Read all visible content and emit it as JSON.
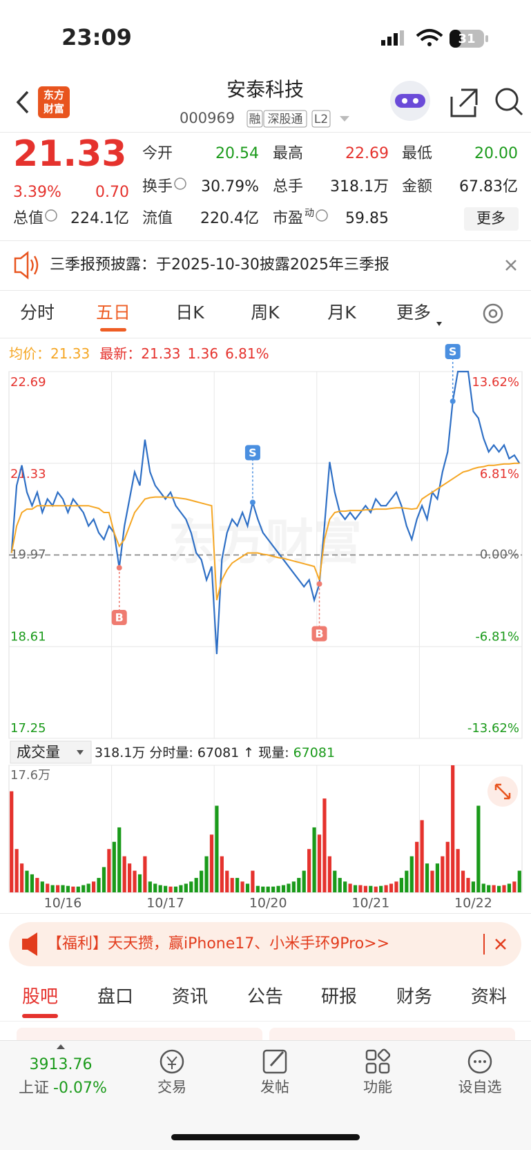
{
  "status_bar": {
    "time": "23:09",
    "battery": "31"
  },
  "header": {
    "logo": [
      "东方",
      "财富"
    ],
    "title": "安泰科技",
    "code": "000969",
    "tags": [
      "融",
      "深股通",
      "L2"
    ]
  },
  "quote": {
    "price": "21.33",
    "change_pct": "3.39%",
    "change": "0.70",
    "color": "#e5322d",
    "fields": [
      {
        "label": "今开",
        "value": "20.54",
        "color": "#1a9a1a"
      },
      {
        "label": "最高",
        "value": "22.69",
        "color": "#e5322d"
      },
      {
        "label": "最低",
        "value": "20.00",
        "color": "#1a9a1a"
      },
      {
        "label": "换手",
        "value": "30.79%",
        "info": true
      },
      {
        "label": "总手",
        "value": "318.1万"
      },
      {
        "label": "金额",
        "value": "67.83亿"
      },
      {
        "label": "总值",
        "value": "224.1亿",
        "info": true
      },
      {
        "label": "流值",
        "value": "220.4亿"
      },
      {
        "label": "市盈",
        "sup": "动",
        "value": "59.85",
        "info": true
      }
    ],
    "more": "更多"
  },
  "notice": {
    "text": "三季报预披露：于2025-10-30披露2025年三季报"
  },
  "tabs": {
    "items": [
      "分时",
      "五日",
      "日K",
      "周K",
      "月K",
      "更多"
    ],
    "active": 1
  },
  "chart_info": {
    "avg_label": "均价：",
    "avg": "21.33",
    "latest_label": "最新：",
    "latest": "21.33",
    "change": "1.36",
    "change_pct": "6.81%"
  },
  "watermark": "东方财富",
  "volume_info": {
    "selector": "成交量",
    "total": "318.1万",
    "period_label": "分时量:",
    "period": "67081",
    "arrow": "↑",
    "current_label": "现量:",
    "current": "67081"
  },
  "banner": {
    "text": "【福利】天天攒，赢iPhone17、小米手环9Pro>>"
  },
  "bottom_tabs": {
    "items": [
      "股吧",
      "盘口",
      "资讯",
      "公告",
      "研报",
      "财务",
      "资料"
    ],
    "active": 0
  },
  "bottom_bar": {
    "index_value": "3913.76",
    "index_name": "上证",
    "index_change": "-0.07%",
    "items": [
      "交易",
      "发帖",
      "功能",
      "设自选"
    ]
  },
  "chart_data": [
    {
      "type": "line",
      "ylim": [
        17.25,
        22.69
      ],
      "yticks": [
        17.25,
        18.61,
        19.97,
        21.33,
        22.69
      ],
      "reference": 19.97,
      "y2lim": [
        -13.62,
        13.62
      ],
      "y2ticks": [
        {
          "value": -13.62,
          "label": "-13.62%"
        },
        {
          "value": -6.81,
          "label": "-6.81%"
        },
        {
          "value": 0,
          "label": "0.00%"
        },
        {
          "value": 6.81,
          "label": "6.81%"
        },
        {
          "value": 13.62,
          "label": "13.62%"
        }
      ],
      "up_color": "#e5322d",
      "down_color": "#1a9a1a",
      "flat_color": "#666666",
      "series": [
        {
          "color": "#2e6fc5",
          "values": [
            20.0,
            21.0,
            21.3,
            20.9,
            20.7,
            20.9,
            20.6,
            20.8,
            20.7,
            20.9,
            20.8,
            20.6,
            20.8,
            20.7,
            20.6,
            20.4,
            20.5,
            20.3,
            20.2,
            20.4,
            20.3,
            19.78,
            20.4,
            20.8,
            21.2,
            21.0,
            21.68,
            21.2,
            21.0,
            20.9,
            20.8,
            20.9,
            20.7,
            20.6,
            20.5,
            20.3,
            20.0,
            19.9,
            19.6,
            19.8,
            18.5,
            19.9,
            20.3,
            20.5,
            20.4,
            20.6,
            20.4,
            20.75,
            20.5,
            20.3,
            20.2,
            20.1,
            20.0,
            19.9,
            19.8,
            19.7,
            19.6,
            19.5,
            19.6,
            19.3,
            19.54,
            20.4,
            21.35,
            20.9,
            20.6,
            20.5,
            20.6,
            20.5,
            20.6,
            20.7,
            20.6,
            20.8,
            20.7,
            20.7,
            20.8,
            20.9,
            20.7,
            20.4,
            20.2,
            20.5,
            20.7,
            20.5,
            20.9,
            20.8,
            21.2,
            21.5,
            22.25,
            22.69,
            22.69,
            22.69,
            22.1,
            22.0,
            21.7,
            21.5,
            21.6,
            21.5,
            21.6,
            21.4,
            21.45,
            21.33
          ]
        },
        {
          "color": "#f5a623",
          "values": [
            20.0,
            20.4,
            20.6,
            20.65,
            20.65,
            20.7,
            20.7,
            20.7,
            20.7,
            20.7,
            20.7,
            20.7,
            20.7,
            20.7,
            20.7,
            20.7,
            20.68,
            20.66,
            20.6,
            20.6,
            20.3,
            20.1,
            20.2,
            20.4,
            20.6,
            20.7,
            20.8,
            20.82,
            20.83,
            20.83,
            20.83,
            20.82,
            20.82,
            20.81,
            20.8,
            20.78,
            20.76,
            20.74,
            20.72,
            20.7,
            19.3,
            19.6,
            19.75,
            19.85,
            19.9,
            19.95,
            20.0,
            20.0,
            20.0,
            19.98,
            19.97,
            19.95,
            19.93,
            19.92,
            19.9,
            19.88,
            19.86,
            19.84,
            19.82,
            19.8,
            19.6,
            20.2,
            20.5,
            20.6,
            20.62,
            20.62,
            20.63,
            20.63,
            20.63,
            20.64,
            20.64,
            20.65,
            20.65,
            20.65,
            20.66,
            20.67,
            20.67,
            20.66,
            20.65,
            20.66,
            20.8,
            20.85,
            20.9,
            20.95,
            21.0,
            21.05,
            21.1,
            21.15,
            21.2,
            21.22,
            21.25,
            21.27,
            21.28,
            21.3,
            21.3,
            21.31,
            21.32,
            21.32,
            21.33,
            21.33
          ]
        }
      ],
      "annotations": [
        {
          "label": "B",
          "index": 21,
          "value": 19.78,
          "color": "#ef7b70"
        },
        {
          "label": "S",
          "index": 47,
          "value": 20.75,
          "color": "#4a8fe0"
        },
        {
          "label": "B",
          "index": 60,
          "value": 19.54,
          "color": "#ef7b70"
        },
        {
          "label": "S",
          "index": 86,
          "value": 22.25,
          "color": "#4a8fe0"
        }
      ]
    },
    {
      "type": "bar",
      "ylim": [
        0,
        17.6
      ],
      "yticks": [
        {
          "value": 17.6,
          "label": "17.6万"
        }
      ],
      "up_color": "#e5322d",
      "down_color": "#1a9a1a",
      "categories": [
        null,
        null,
        null,
        null,
        null,
        null,
        null,
        null,
        null,
        null,
        "10/16",
        null,
        null,
        null,
        null,
        null,
        null,
        null,
        null,
        null,
        null,
        null,
        null,
        null,
        null,
        null,
        null,
        null,
        null,
        null,
        "10/17",
        null,
        null,
        null,
        null,
        null,
        null,
        null,
        null,
        null,
        null,
        null,
        null,
        null,
        null,
        null,
        null,
        null,
        null,
        null,
        "10/20",
        null,
        null,
        null,
        null,
        null,
        null,
        null,
        null,
        null,
        null,
        null,
        null,
        null,
        null,
        null,
        null,
        null,
        null,
        null,
        "10/21",
        null,
        null,
        null,
        null,
        null,
        null,
        null,
        null,
        null,
        null,
        null,
        null,
        null,
        null,
        null,
        null,
        null,
        null,
        null,
        "10/22",
        null,
        null,
        null,
        null,
        null,
        null,
        null,
        null,
        null
      ],
      "values": [
        14,
        6,
        4,
        3,
        2.5,
        2,
        1.5,
        1.2,
        1,
        1,
        1,
        0.9,
        0.8,
        0.8,
        1,
        1.2,
        1.5,
        2,
        3.5,
        6,
        7,
        9,
        5,
        4,
        3,
        2.5,
        5,
        1.5,
        1.2,
        1,
        0.9,
        0.8,
        0.8,
        1,
        1.2,
        1.5,
        2,
        3,
        5,
        8,
        12,
        5,
        3,
        2,
        2,
        1.5,
        1.2,
        3,
        0.9,
        0.8,
        0.8,
        0.8,
        0.9,
        1,
        1.2,
        1.5,
        2,
        3,
        6,
        9,
        8,
        13,
        5,
        3,
        2,
        1.5,
        1.2,
        1,
        1,
        0.9,
        0.9,
        0.8,
        0.9,
        1,
        1.2,
        1.5,
        2,
        3,
        5,
        7,
        10,
        4,
        3,
        4,
        5,
        7,
        17.6,
        6,
        3,
        2,
        1.5,
        12,
        1.2,
        1,
        1,
        0.9,
        1,
        1.2,
        1.5,
        3
      ]
    }
  ]
}
